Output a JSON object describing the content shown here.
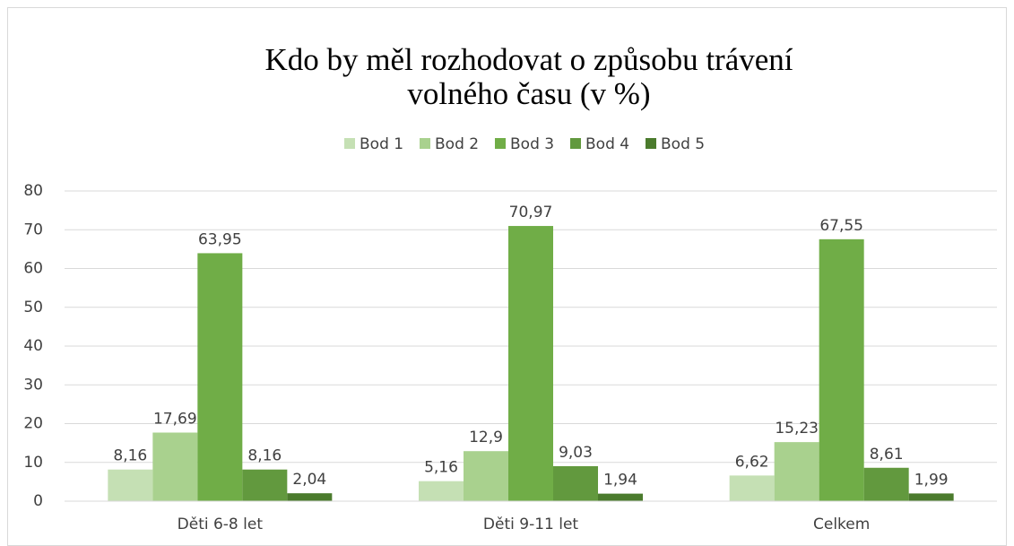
{
  "chart_data": {
    "type": "bar",
    "title": [
      "Kdo by měl rozhodovat o způsobu trávení",
      "volného času (v %)"
    ],
    "categories": [
      "Děti 6-8 let",
      "Děti 9-11 let",
      "Celkem"
    ],
    "series": [
      {
        "name": "Bod 1",
        "color": "#c5e0b4",
        "values": [
          8.16,
          5.16,
          6.62
        ],
        "value_labels": [
          "8,16",
          "5,16",
          "6,62"
        ]
      },
      {
        "name": "Bod 2",
        "color": "#a9d18e",
        "values": [
          17.69,
          12.9,
          15.23
        ],
        "value_labels": [
          "17,69",
          "12,9",
          "15,23"
        ]
      },
      {
        "name": "Bod 3",
        "color": "#70ad47",
        "values": [
          63.95,
          70.97,
          67.55
        ],
        "value_labels": [
          "63,95",
          "70,97",
          "67,55"
        ]
      },
      {
        "name": "Bod 4",
        "color": "#62993e",
        "values": [
          8.16,
          9.03,
          8.61
        ],
        "value_labels": [
          "8,16",
          "9,03",
          "8,61"
        ]
      },
      {
        "name": "Bod 5",
        "color": "#4b7b2d",
        "values": [
          2.04,
          1.94,
          1.99
        ],
        "value_labels": [
          "2,04",
          "1,94",
          "1,99"
        ]
      }
    ],
    "ylim": [
      0,
      80
    ],
    "yticks": [
      0,
      10,
      20,
      30,
      40,
      50,
      60,
      70,
      80
    ],
    "grid": true,
    "legend": "top"
  }
}
